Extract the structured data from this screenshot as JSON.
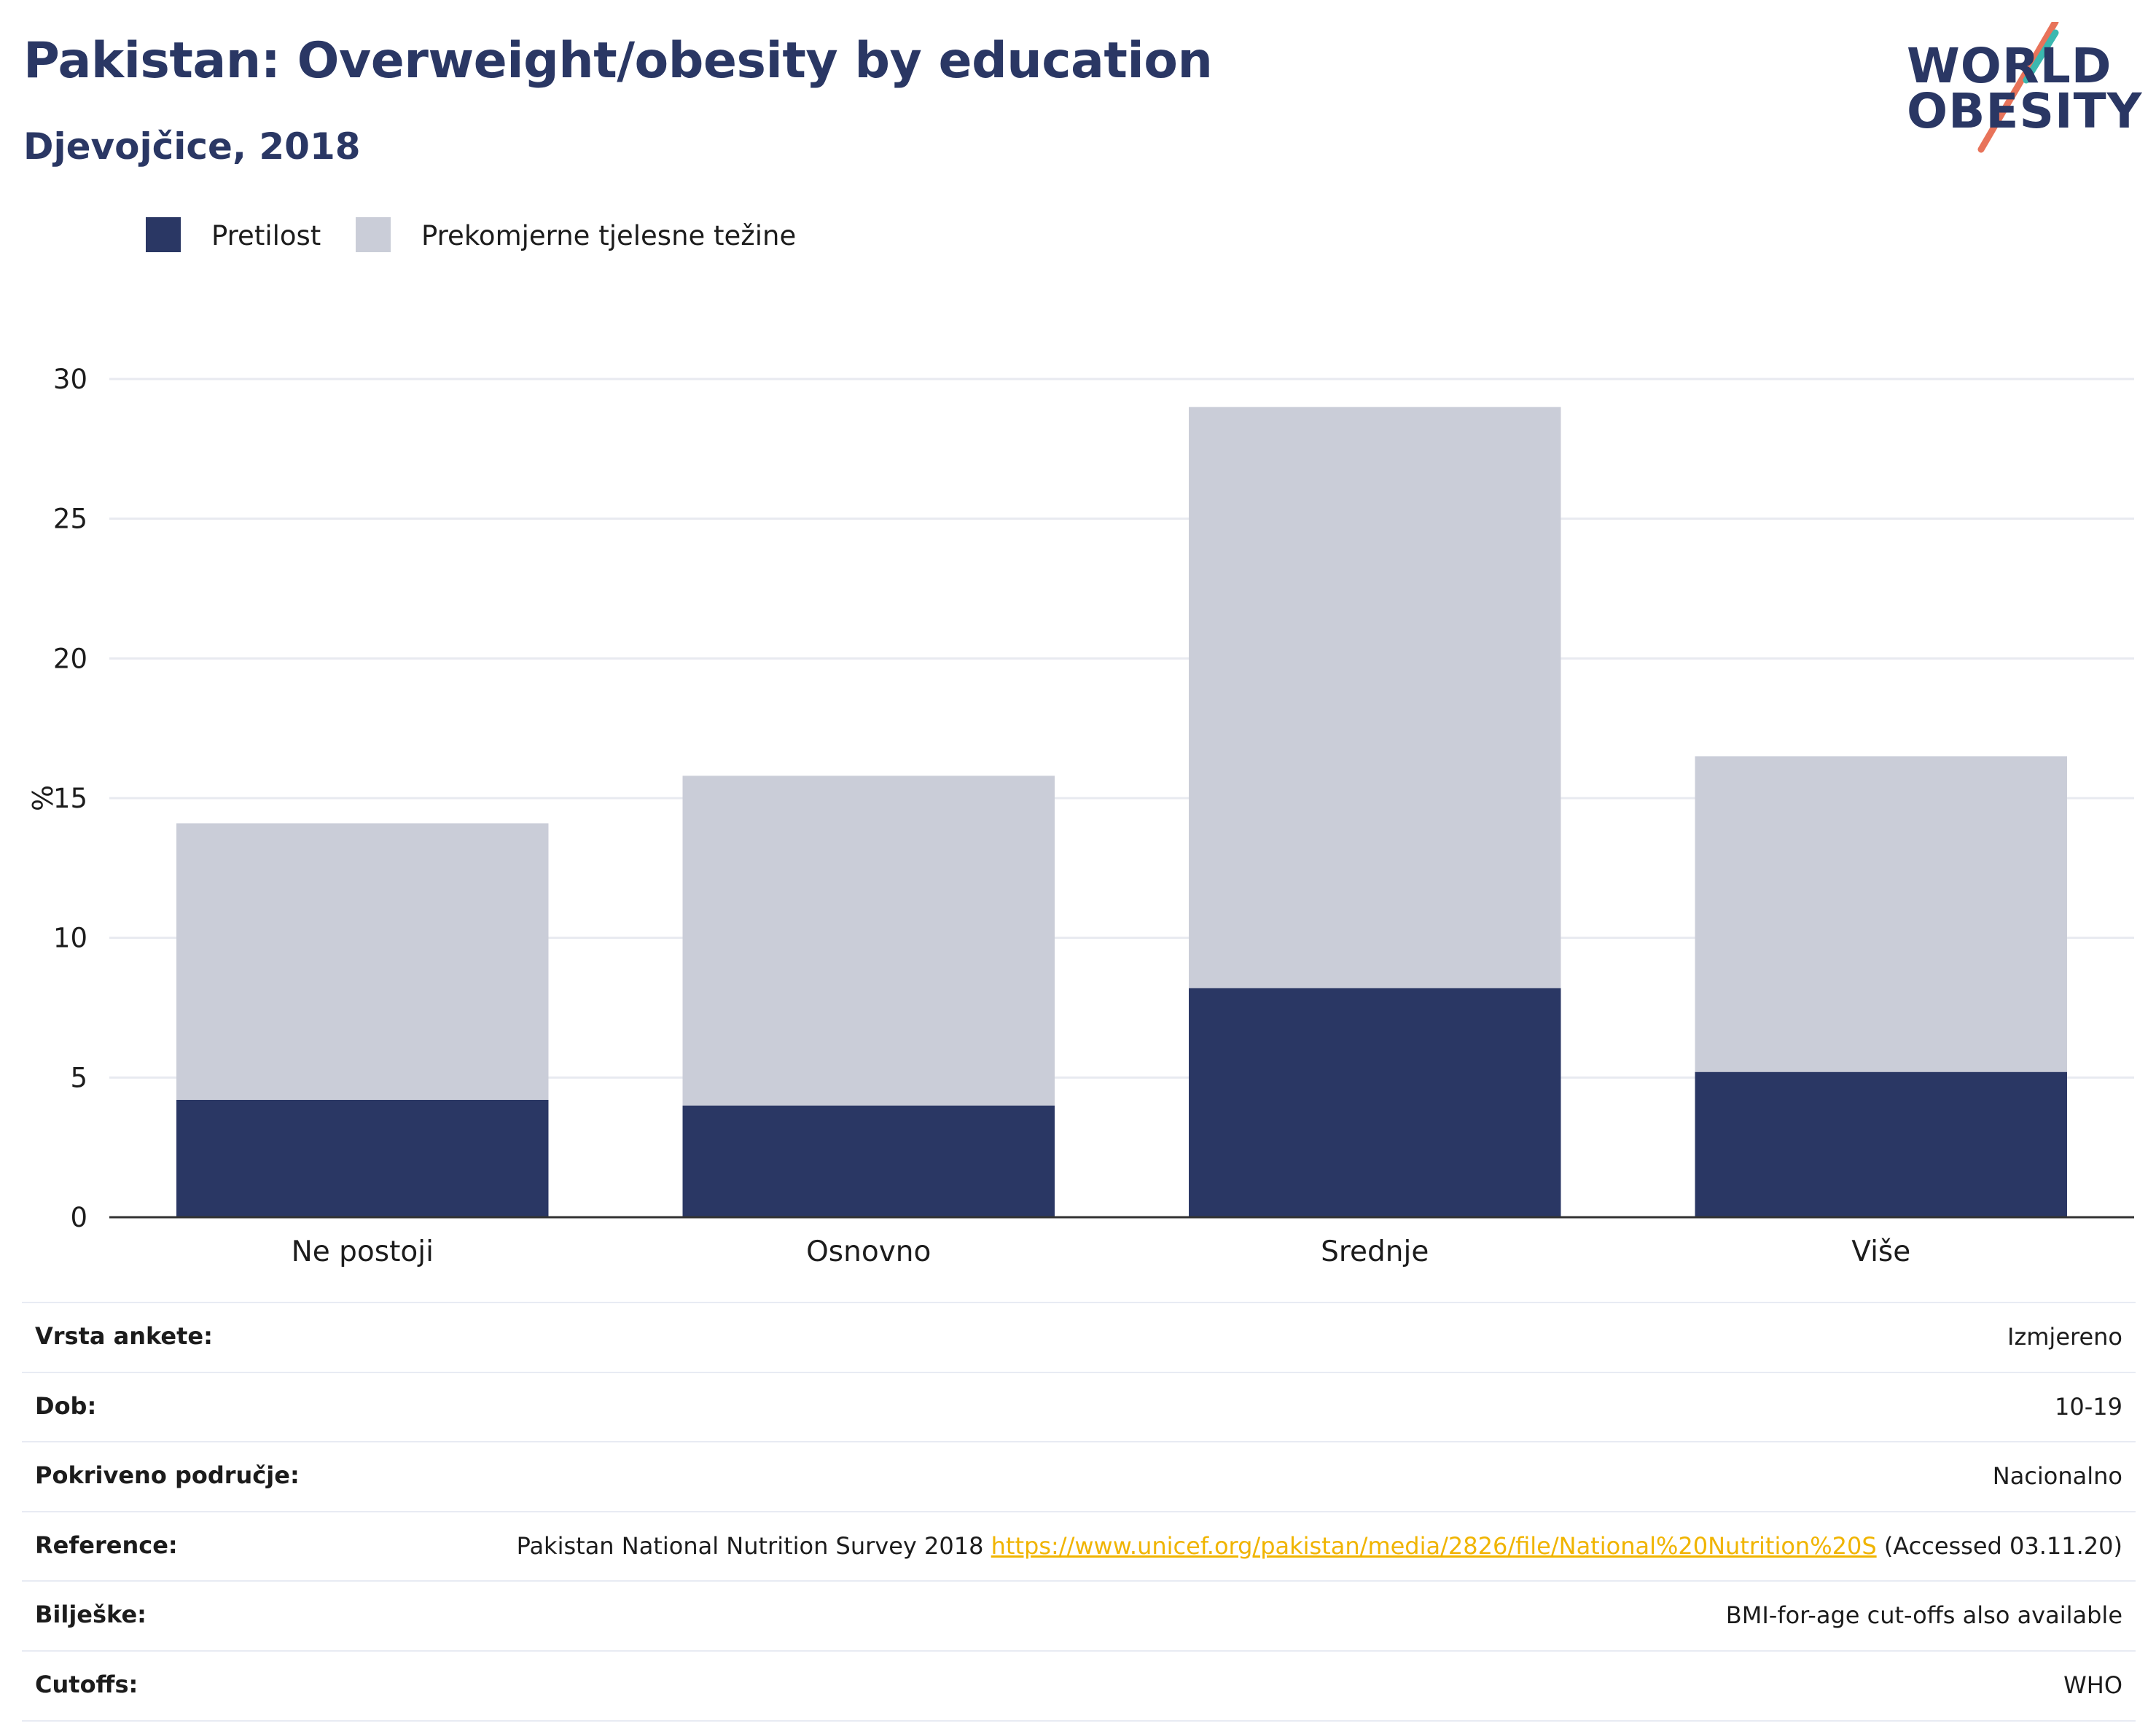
{
  "header": {
    "title": "Pakistan: Overweight/obesity by education",
    "subtitle": "Djevojčice, 2018"
  },
  "logo": {
    "line1": "WORLD",
    "line2": "OBESITY"
  },
  "legend": [
    {
      "label": "Pretilost",
      "color": "#2a3764"
    },
    {
      "label": "Prekomjerne tjelesne težine",
      "color": "#cacdd8"
    }
  ],
  "chart_data": {
    "type": "bar",
    "stacked": true,
    "categories": [
      "Ne postoji",
      "Osnovno",
      "Srednje",
      "Više"
    ],
    "series": [
      {
        "name": "Pretilost",
        "values": [
          4.2,
          4.0,
          8.2,
          5.2
        ],
        "color": "#2a3764"
      },
      {
        "name": "Prekomjerne tjelesne težine",
        "values": [
          9.9,
          11.8,
          20.8,
          11.3
        ],
        "color": "#cacdd8"
      }
    ],
    "ylabel": "%",
    "ylim": [
      0,
      30
    ],
    "yticks": [
      0,
      5,
      10,
      15,
      20,
      25,
      30
    ],
    "grid": true
  },
  "meta": [
    {
      "label": "Vrsta ankete:",
      "value": "Izmjereno"
    },
    {
      "label": "Dob:",
      "value": "10-19"
    },
    {
      "label": "Pokriveno područje:",
      "value": "Nacionalno"
    },
    {
      "label": "Reference:",
      "value_prefix": "Pakistan National Nutrition Survey 2018 ",
      "value_link": "https://www.unicef.org/pakistan/media/2826/file/National%20Nutrition%20S",
      "value_suffix": " (Accessed 03.11.20)"
    },
    {
      "label": "Bilješke:",
      "value": "BMI-for-age cut-offs also available"
    },
    {
      "label": "Cutoffs:",
      "value": "WHO"
    }
  ]
}
